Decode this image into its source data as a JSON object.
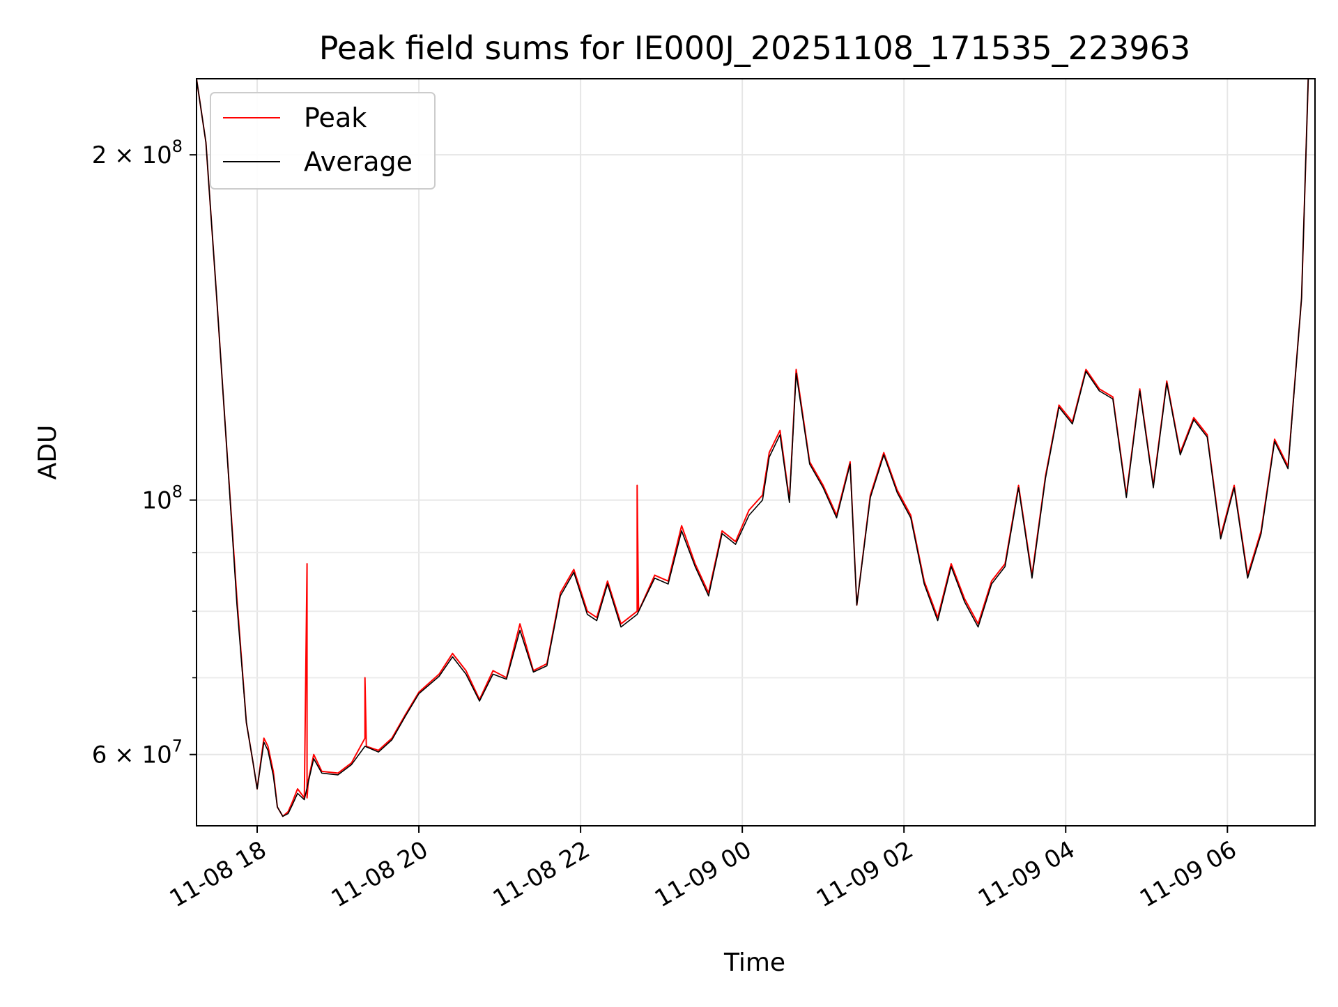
{
  "chart_data": {
    "type": "line",
    "title": "Peak field sums for IE000J_20251108_171535_223963",
    "xlabel": "Time",
    "ylabel": "ADU",
    "yscale": "log",
    "ylim": [
      52000000,
      233000000
    ],
    "xlim": [
      "2025-11-08 17:15",
      "2025-11-09 07:05"
    ],
    "grid": true,
    "legend_position": "upper-left",
    "x_ticks": [
      "11-08 18",
      "11-08 20",
      "11-08 22",
      "11-09 00",
      "11-09 02",
      "11-09 04",
      "11-09 06"
    ],
    "y_ticks": [
      {
        "label": "2 × 10",
        "exp": "8"
      },
      {
        "label": "10",
        "exp": "8"
      },
      {
        "label": "6 × 10",
        "exp": "7"
      }
    ],
    "colors": {
      "peak": "#ff0000",
      "average": "#000000"
    },
    "series": [
      {
        "name": "Peak",
        "x": [
          "2025-11-08 17:15",
          "2025-11-08 17:22",
          "2025-11-08 17:30",
          "2025-11-08 17:37",
          "2025-11-08 17:45",
          "2025-11-08 17:52",
          "2025-11-08 17:57",
          "2025-11-08 18:00",
          "2025-11-08 18:05",
          "2025-11-08 18:08",
          "2025-11-08 18:12",
          "2025-11-08 18:15",
          "2025-11-08 18:19",
          "2025-11-08 18:23",
          "2025-11-08 18:26",
          "2025-11-08 18:30",
          "2025-11-08 18:35",
          "2025-11-08 18:37",
          "2025-11-08 18:37",
          "2025-11-08 18:38",
          "2025-11-08 18:42",
          "2025-11-08 18:48",
          "2025-11-08 19:00",
          "2025-11-08 19:10",
          "2025-11-08 19:20",
          "2025-11-08 19:20",
          "2025-11-08 19:21",
          "2025-11-08 19:30",
          "2025-11-08 19:40",
          "2025-11-08 19:50",
          "2025-11-08 20:00",
          "2025-11-08 20:15",
          "2025-11-08 20:25",
          "2025-11-08 20:35",
          "2025-11-08 20:45",
          "2025-11-08 20:55",
          "2025-11-08 21:05",
          "2025-11-08 21:15",
          "2025-11-08 21:25",
          "2025-11-08 21:35",
          "2025-11-08 21:45",
          "2025-11-08 21:55",
          "2025-11-08 22:05",
          "2025-11-08 22:12",
          "2025-11-08 22:20",
          "2025-11-08 22:30",
          "2025-11-08 22:42",
          "2025-11-08 22:42",
          "2025-11-08 22:43",
          "2025-11-08 22:55",
          "2025-11-08 23:05",
          "2025-11-08 23:15",
          "2025-11-08 23:25",
          "2025-11-08 23:35",
          "2025-11-08 23:45",
          "2025-11-08 23:55",
          "2025-11-09 00:05",
          "2025-11-09 00:15",
          "2025-11-09 00:20",
          "2025-11-09 00:28",
          "2025-11-09 00:35",
          "2025-11-09 00:40",
          "2025-11-09 00:50",
          "2025-11-09 01:00",
          "2025-11-09 01:10",
          "2025-11-09 01:20",
          "2025-11-09 01:25",
          "2025-11-09 01:35",
          "2025-11-09 01:45",
          "2025-11-09 01:55",
          "2025-11-09 02:05",
          "2025-11-09 02:15",
          "2025-11-09 02:25",
          "2025-11-09 02:35",
          "2025-11-09 02:45",
          "2025-11-09 02:55",
          "2025-11-09 03:05",
          "2025-11-09 03:15",
          "2025-11-09 03:25",
          "2025-11-09 03:35",
          "2025-11-09 03:45",
          "2025-11-09 03:55",
          "2025-11-09 04:05",
          "2025-11-09 04:15",
          "2025-11-09 04:25",
          "2025-11-09 04:35",
          "2025-11-09 04:45",
          "2025-11-09 04:55",
          "2025-11-09 05:05",
          "2025-11-09 05:15",
          "2025-11-09 05:25",
          "2025-11-09 05:35",
          "2025-11-09 05:45",
          "2025-11-09 05:55",
          "2025-11-09 06:05",
          "2025-11-09 06:15",
          "2025-11-09 06:25",
          "2025-11-09 06:35",
          "2025-11-09 06:45",
          "2025-11-09 06:55",
          "2025-11-09 07:00"
        ],
        "y": [
          233000000,
          205000000,
          150000000,
          113000000,
          82000000,
          64000000,
          59000000,
          56000000,
          62000000,
          61000000,
          58000000,
          54000000,
          53000000,
          53500000,
          54500000,
          56000000,
          55000000,
          88000000,
          55000000,
          57000000,
          60000000,
          58000000,
          57800000,
          59000000,
          62000000,
          70000000,
          61000000,
          60500000,
          62000000,
          65000000,
          68000000,
          70500000,
          73500000,
          71000000,
          67000000,
          71000000,
          70000000,
          78000000,
          71000000,
          72000000,
          83000000,
          87000000,
          80000000,
          79000000,
          85000000,
          78000000,
          80000000,
          103000000,
          80000000,
          86000000,
          85000000,
          95000000,
          88000000,
          83000000,
          94000000,
          92000000,
          98000000,
          101000000,
          110000000,
          115000000,
          100000000,
          130000000,
          108000000,
          103000000,
          97000000,
          108000000,
          81000000,
          101000000,
          110000000,
          102000000,
          97000000,
          85000000,
          79000000,
          88000000,
          82000000,
          78000000,
          85000000,
          88000000,
          103000000,
          86000000,
          105000000,
          121000000,
          117000000,
          130000000,
          125000000,
          123000000,
          101000000,
          125000000,
          103000000,
          127000000,
          110000000,
          118000000,
          114000000,
          93000000,
          103000000,
          86000000,
          94000000,
          113000000,
          107000000,
          150000000,
          233000000
        ]
      },
      {
        "name": "Average",
        "x": [
          "2025-11-08 17:15",
          "2025-11-08 17:22",
          "2025-11-08 17:30",
          "2025-11-08 17:37",
          "2025-11-08 17:45",
          "2025-11-08 17:52",
          "2025-11-08 17:57",
          "2025-11-08 18:00",
          "2025-11-08 18:05",
          "2025-11-08 18:08",
          "2025-11-08 18:12",
          "2025-11-08 18:15",
          "2025-11-08 18:19",
          "2025-11-08 18:23",
          "2025-11-08 18:26",
          "2025-11-08 18:30",
          "2025-11-08 18:35",
          "2025-11-08 18:38",
          "2025-11-08 18:42",
          "2025-11-08 18:48",
          "2025-11-08 19:00",
          "2025-11-08 19:10",
          "2025-11-08 19:20",
          "2025-11-08 19:30",
          "2025-11-08 19:40",
          "2025-11-08 19:50",
          "2025-11-08 20:00",
          "2025-11-08 20:15",
          "2025-11-08 20:25",
          "2025-11-08 20:35",
          "2025-11-08 20:45",
          "2025-11-08 20:55",
          "2025-11-08 21:05",
          "2025-11-08 21:15",
          "2025-11-08 21:25",
          "2025-11-08 21:35",
          "2025-11-08 21:45",
          "2025-11-08 21:55",
          "2025-11-08 22:05",
          "2025-11-08 22:12",
          "2025-11-08 22:20",
          "2025-11-08 22:30",
          "2025-11-08 22:42",
          "2025-11-08 22:55",
          "2025-11-08 23:05",
          "2025-11-08 23:15",
          "2025-11-08 23:25",
          "2025-11-08 23:35",
          "2025-11-08 23:45",
          "2025-11-08 23:55",
          "2025-11-09 00:05",
          "2025-11-09 00:15",
          "2025-11-09 00:20",
          "2025-11-09 00:28",
          "2025-11-09 00:35",
          "2025-11-09 00:40",
          "2025-11-09 00:50",
          "2025-11-09 01:00",
          "2025-11-09 01:10",
          "2025-11-09 01:20",
          "2025-11-09 01:25",
          "2025-11-09 01:35",
          "2025-11-09 01:45",
          "2025-11-09 01:55",
          "2025-11-09 02:05",
          "2025-11-09 02:15",
          "2025-11-09 02:25",
          "2025-11-09 02:35",
          "2025-11-09 02:45",
          "2025-11-09 02:55",
          "2025-11-09 03:05",
          "2025-11-09 03:15",
          "2025-11-09 03:25",
          "2025-11-09 03:35",
          "2025-11-09 03:45",
          "2025-11-09 03:55",
          "2025-11-09 04:05",
          "2025-11-09 04:15",
          "2025-11-09 04:25",
          "2025-11-09 04:35",
          "2025-11-09 04:45",
          "2025-11-09 04:55",
          "2025-11-09 05:05",
          "2025-11-09 05:15",
          "2025-11-09 05:25",
          "2025-11-09 05:35",
          "2025-11-09 05:45",
          "2025-11-09 05:55",
          "2025-11-09 06:05",
          "2025-11-09 06:15",
          "2025-11-09 06:25",
          "2025-11-09 06:35",
          "2025-11-09 06:45",
          "2025-11-09 06:55",
          "2025-11-09 07:00"
        ],
        "y": [
          233000000,
          205000000,
          150000000,
          113000000,
          81000000,
          64000000,
          59000000,
          56000000,
          61500000,
          60500000,
          57500000,
          54000000,
          53000000,
          53300000,
          54200000,
          55500000,
          54800000,
          56800000,
          59500000,
          57800000,
          57600000,
          58800000,
          61000000,
          60300000,
          61800000,
          64800000,
          67800000,
          70200000,
          73000000,
          70500000,
          66800000,
          70500000,
          69800000,
          77000000,
          70800000,
          71700000,
          82500000,
          86500000,
          79500000,
          78500000,
          84500000,
          77500000,
          79500000,
          85500000,
          84500000,
          94000000,
          87500000,
          82500000,
          93500000,
          91500000,
          97000000,
          100000000,
          109000000,
          114000000,
          99500000,
          129000000,
          107500000,
          102500000,
          96500000,
          107500000,
          81000000,
          100500000,
          109500000,
          101500000,
          96500000,
          84500000,
          78500000,
          87500000,
          81500000,
          77500000,
          84500000,
          87500000,
          102500000,
          85500000,
          104500000,
          120500000,
          116500000,
          129500000,
          124500000,
          122500000,
          100500000,
          124500000,
          102500000,
          126500000,
          109500000,
          117500000,
          113500000,
          92500000,
          102500000,
          85500000,
          93500000,
          112500000,
          106500000,
          150000000,
          233000000
        ]
      }
    ]
  }
}
